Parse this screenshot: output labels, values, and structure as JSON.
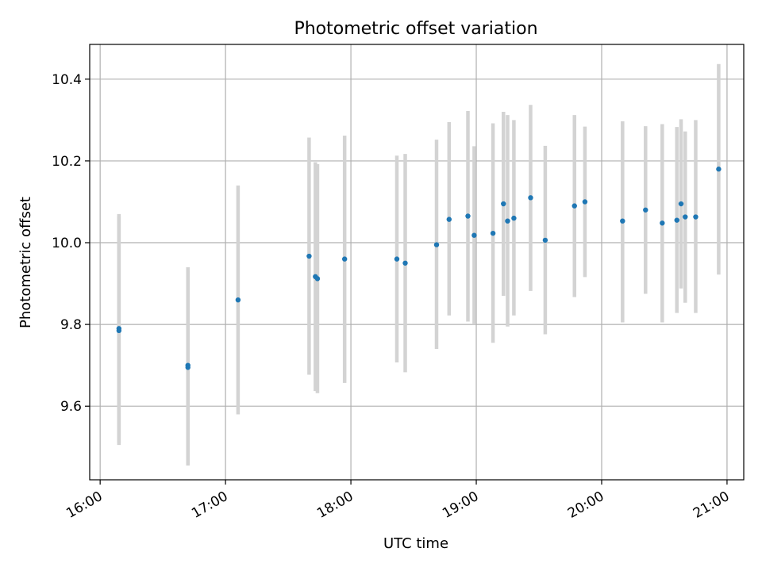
{
  "chart_data": {
    "type": "scatter",
    "title": "Photometric offset variation",
    "xlabel": "UTC time",
    "ylabel": "Photometric offset",
    "xlim": [
      "15:55",
      "21:08"
    ],
    "ylim": [
      9.42,
      10.485
    ],
    "x_ticks": [
      "16:00",
      "17:00",
      "18:00",
      "19:00",
      "20:00",
      "21:00"
    ],
    "y_ticks": [
      9.6,
      9.8,
      10.0,
      10.2,
      10.4
    ],
    "y_tick_labels": [
      "9.6",
      "9.8",
      "10.0",
      "10.2",
      "10.4"
    ],
    "grid": true,
    "point_color": "#1f77b4",
    "errorbar_color": "#d3d3d3",
    "points": [
      {
        "t": "16:09",
        "y": 9.79,
        "low": 9.505,
        "high": 10.07
      },
      {
        "t": "16:09",
        "y": 9.785,
        "low": 9.51,
        "high": 10.065
      },
      {
        "t": "16:42",
        "y": 9.695,
        "low": 9.455,
        "high": 9.93
      },
      {
        "t": "16:42",
        "y": 9.7,
        "low": 9.46,
        "high": 9.94
      },
      {
        "t": "17:06",
        "y": 9.86,
        "low": 9.58,
        "high": 10.14
      },
      {
        "t": "17:40",
        "y": 9.967,
        "low": 9.677,
        "high": 10.257
      },
      {
        "t": "17:43",
        "y": 9.917,
        "low": 9.637,
        "high": 10.197
      },
      {
        "t": "17:44",
        "y": 9.912,
        "low": 9.632,
        "high": 10.192
      },
      {
        "t": "17:57",
        "y": 9.96,
        "low": 9.657,
        "high": 10.262
      },
      {
        "t": "18:22",
        "y": 9.96,
        "low": 9.707,
        "high": 10.213
      },
      {
        "t": "18:26",
        "y": 9.95,
        "low": 9.683,
        "high": 10.217
      },
      {
        "t": "18:41",
        "y": 9.995,
        "low": 9.74,
        "high": 10.252
      },
      {
        "t": "18:47",
        "y": 10.057,
        "low": 9.822,
        "high": 10.295
      },
      {
        "t": "18:56",
        "y": 10.065,
        "low": 9.807,
        "high": 10.322
      },
      {
        "t": "18:59",
        "y": 10.018,
        "low": 9.8,
        "high": 10.236
      },
      {
        "t": "19:08",
        "y": 10.023,
        "low": 9.755,
        "high": 10.292
      },
      {
        "t": "19:13",
        "y": 10.095,
        "low": 9.87,
        "high": 10.32
      },
      {
        "t": "19:15",
        "y": 10.053,
        "low": 9.795,
        "high": 10.312
      },
      {
        "t": "19:18",
        "y": 10.06,
        "low": 9.822,
        "high": 10.3
      },
      {
        "t": "19:26",
        "y": 10.11,
        "low": 9.882,
        "high": 10.337
      },
      {
        "t": "19:33",
        "y": 10.006,
        "low": 9.776,
        "high": 10.237
      },
      {
        "t": "19:47",
        "y": 10.09,
        "low": 9.867,
        "high": 10.312
      },
      {
        "t": "19:52",
        "y": 10.1,
        "low": 9.916,
        "high": 10.284
      },
      {
        "t": "20:10",
        "y": 10.053,
        "low": 9.805,
        "high": 10.297
      },
      {
        "t": "20:21",
        "y": 10.08,
        "low": 9.875,
        "high": 10.285
      },
      {
        "t": "20:29",
        "y": 10.048,
        "low": 9.805,
        "high": 10.29
      },
      {
        "t": "20:36",
        "y": 10.055,
        "low": 9.828,
        "high": 10.283
      },
      {
        "t": "20:38",
        "y": 10.095,
        "low": 9.888,
        "high": 10.302
      },
      {
        "t": "20:40",
        "y": 10.063,
        "low": 9.853,
        "high": 10.272
      },
      {
        "t": "20:45",
        "y": 10.063,
        "low": 9.828,
        "high": 10.3
      },
      {
        "t": "20:56",
        "y": 10.18,
        "low": 9.922,
        "high": 10.437
      }
    ]
  }
}
